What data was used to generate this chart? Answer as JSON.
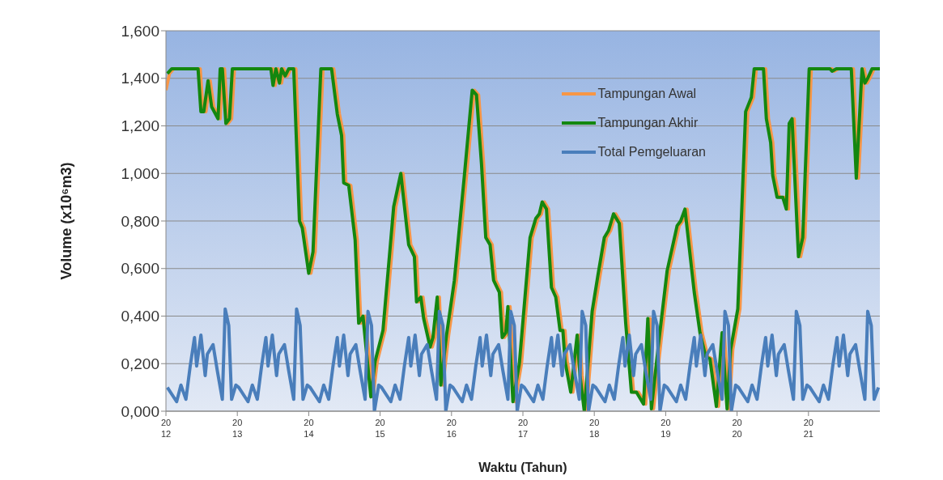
{
  "chart_data": {
    "type": "line",
    "xlabel": "Waktu (Tahun)",
    "ylabel": "Volume (x10⁶m3)",
    "xlim": [
      2012,
      2022
    ],
    "xticks": [
      2012,
      2013,
      2014,
      2015,
      2016,
      2017,
      2018,
      2019,
      2020,
      2021
    ],
    "ylim": [
      0,
      1.6
    ],
    "yticks": [
      {
        "value": 0,
        "label": "0,000"
      },
      {
        "value": 0.2,
        "label": "0,200"
      },
      {
        "value": 0.4,
        "label": "0,400"
      },
      {
        "value": 0.6,
        "label": "0,600"
      },
      {
        "value": 0.8,
        "label": "0,800"
      },
      {
        "value": 1.0,
        "label": "1,000"
      },
      {
        "value": 1.2,
        "label": "1,200"
      },
      {
        "value": 1.4,
        "label": "1,400"
      },
      {
        "value": 1.6,
        "label": "1,600"
      }
    ],
    "grid": "y",
    "legend": "top right",
    "series": [
      {
        "name": "Tampungan Awal",
        "color": "#f79646",
        "x": [
          2012.0,
          2012.05,
          2012.11,
          2012.48,
          2012.52,
          2012.56,
          2012.62,
          2012.67,
          2012.76,
          2012.79,
          2012.82,
          2012.87,
          2012.92,
          2012.96,
          2013.5,
          2013.53,
          2013.57,
          2013.62,
          2013.65,
          2013.7,
          2013.75,
          2013.82,
          2013.9,
          2013.94,
          2014.03,
          2014.09,
          2014.2,
          2014.35,
          2014.43,
          2014.49,
          2014.52,
          2014.59,
          2014.68,
          2014.73,
          2014.79,
          2014.9,
          2014.96,
          2015.07,
          2015.22,
          2015.32,
          2015.43,
          2015.51,
          2015.54,
          2015.6,
          2015.64,
          2015.73,
          2015.77,
          2015.83,
          2015.88,
          2015.96,
          2016.07,
          2016.21,
          2016.32,
          2016.38,
          2016.45,
          2016.51,
          2016.57,
          2016.62,
          2016.7,
          2016.74,
          2016.79,
          2016.82,
          2016.89,
          2016.98,
          2017.13,
          2017.21,
          2017.26,
          2017.3,
          2017.36,
          2017.43,
          2017.49,
          2017.55,
          2017.59,
          2017.62,
          2017.7,
          2017.79,
          2017.83,
          2017.89,
          2018.0,
          2018.08,
          2018.17,
          2018.23,
          2018.3,
          2018.38,
          2018.47,
          2018.55,
          2018.62,
          2018.72,
          2018.78,
          2018.83,
          2018.94,
          2019.05,
          2019.19,
          2019.24,
          2019.3,
          2019.43,
          2019.51,
          2019.59,
          2019.65,
          2019.74,
          2019.82,
          2019.89,
          2019.94,
          2020.04,
          2020.15,
          2020.23,
          2020.27,
          2020.4,
          2020.44,
          2020.5,
          2020.53,
          2020.59,
          2020.67,
          2020.72,
          2020.76,
          2020.8,
          2020.89,
          2020.95,
          2021.04,
          2021.33,
          2021.36,
          2021.42,
          2021.63,
          2021.7,
          2021.78,
          2021.82,
          2021.86,
          2021.92
        ],
        "values": [
          1.35,
          1.42,
          1.44,
          1.44,
          1.26,
          1.26,
          1.39,
          1.28,
          1.23,
          1.44,
          1.44,
          1.21,
          1.23,
          1.44,
          1.44,
          1.37,
          1.44,
          1.38,
          1.44,
          1.41,
          1.44,
          1.44,
          0.8,
          0.77,
          0.58,
          0.67,
          1.44,
          1.44,
          1.25,
          1.16,
          0.96,
          0.95,
          0.72,
          0.37,
          0.4,
          0.06,
          0.21,
          0.34,
          0.86,
          1.0,
          0.7,
          0.65,
          0.46,
          0.48,
          0.39,
          0.27,
          0.31,
          0.48,
          0.11,
          0.32,
          0.55,
          0.99,
          1.35,
          1.33,
          1.04,
          0.73,
          0.7,
          0.55,
          0.5,
          0.31,
          0.33,
          0.44,
          0.04,
          0.2,
          0.73,
          0.81,
          0.83,
          0.88,
          0.85,
          0.52,
          0.48,
          0.34,
          0.34,
          0.21,
          0.08,
          0.32,
          0.15,
          0.0,
          0.42,
          0.57,
          0.73,
          0.76,
          0.83,
          0.79,
          0.37,
          0.08,
          0.08,
          0.03,
          0.39,
          0.01,
          0.31,
          0.59,
          0.78,
          0.8,
          0.85,
          0.5,
          0.33,
          0.23,
          0.22,
          0.02,
          0.33,
          0.01,
          0.26,
          0.43,
          1.26,
          1.32,
          1.44,
          1.44,
          1.23,
          1.13,
          0.99,
          0.9,
          0.9,
          0.85,
          1.21,
          1.23,
          0.65,
          0.73,
          1.44,
          1.44,
          1.43,
          1.44,
          1.44,
          0.98,
          1.44,
          1.38,
          1.4,
          1.44
        ]
      },
      {
        "name": "Tampungan Akhir",
        "color": "#14870f",
        "x": [
          2012.02,
          2012.08,
          2012.45,
          2012.49,
          2012.53,
          2012.59,
          2012.64,
          2012.73,
          2012.76,
          2012.79,
          2012.84,
          2012.89,
          2012.93,
          2013.47,
          2013.5,
          2013.54,
          2013.59,
          2013.62,
          2013.67,
          2013.72,
          2013.79,
          2013.87,
          2013.91,
          2014.0,
          2014.06,
          2014.17,
          2014.32,
          2014.4,
          2014.46,
          2014.49,
          2014.56,
          2014.65,
          2014.7,
          2014.76,
          2014.87,
          2014.93,
          2015.04,
          2015.19,
          2015.29,
          2015.4,
          2015.48,
          2015.51,
          2015.57,
          2015.61,
          2015.7,
          2015.74,
          2015.8,
          2015.85,
          2015.93,
          2016.04,
          2016.18,
          2016.29,
          2016.35,
          2016.42,
          2016.48,
          2016.54,
          2016.59,
          2016.67,
          2016.71,
          2016.76,
          2016.79,
          2016.86,
          2016.95,
          2017.1,
          2017.18,
          2017.23,
          2017.27,
          2017.33,
          2017.4,
          2017.46,
          2017.52,
          2017.56,
          2017.59,
          2017.67,
          2017.76,
          2017.8,
          2017.86,
          2017.97,
          2018.05,
          2018.14,
          2018.2,
          2018.27,
          2018.35,
          2018.44,
          2018.52,
          2018.59,
          2018.69,
          2018.75,
          2018.8,
          2018.91,
          2019.02,
          2019.16,
          2019.21,
          2019.27,
          2019.4,
          2019.48,
          2019.56,
          2019.62,
          2019.71,
          2019.79,
          2019.86,
          2019.91,
          2020.01,
          2020.12,
          2020.2,
          2020.24,
          2020.37,
          2020.41,
          2020.47,
          2020.5,
          2020.56,
          2020.64,
          2020.69,
          2020.73,
          2020.77,
          2020.86,
          2020.92,
          2021.01,
          2021.3,
          2021.33,
          2021.39,
          2021.6,
          2021.67,
          2021.75,
          2021.79,
          2021.83,
          2021.89,
          2022.0
        ],
        "values": [
          1.42,
          1.44,
          1.44,
          1.26,
          1.26,
          1.39,
          1.28,
          1.23,
          1.44,
          1.44,
          1.21,
          1.23,
          1.44,
          1.44,
          1.37,
          1.44,
          1.38,
          1.44,
          1.41,
          1.44,
          1.44,
          0.8,
          0.77,
          0.58,
          0.67,
          1.44,
          1.44,
          1.25,
          1.16,
          0.96,
          0.95,
          0.72,
          0.37,
          0.4,
          0.06,
          0.21,
          0.34,
          0.86,
          1.0,
          0.7,
          0.65,
          0.46,
          0.48,
          0.39,
          0.27,
          0.31,
          0.48,
          0.11,
          0.32,
          0.55,
          0.99,
          1.35,
          1.33,
          1.04,
          0.73,
          0.7,
          0.55,
          0.5,
          0.31,
          0.33,
          0.44,
          0.04,
          0.2,
          0.73,
          0.81,
          0.83,
          0.88,
          0.85,
          0.52,
          0.48,
          0.34,
          0.34,
          0.21,
          0.08,
          0.32,
          0.15,
          0.0,
          0.42,
          0.57,
          0.73,
          0.76,
          0.83,
          0.79,
          0.37,
          0.08,
          0.08,
          0.03,
          0.39,
          0.01,
          0.31,
          0.59,
          0.78,
          0.8,
          0.85,
          0.5,
          0.33,
          0.23,
          0.22,
          0.02,
          0.33,
          0.01,
          0.26,
          0.43,
          1.26,
          1.32,
          1.44,
          1.44,
          1.23,
          1.13,
          0.99,
          0.9,
          0.9,
          0.85,
          1.21,
          1.23,
          0.65,
          0.73,
          1.44,
          1.44,
          1.43,
          1.44,
          1.44,
          0.98,
          1.44,
          1.38,
          1.4,
          1.44,
          1.44
        ]
      },
      {
        "name": "Total Pemgeluaran",
        "color": "#4a7ebb",
        "x": [
          2012.02,
          2012.15,
          2012.21,
          2012.28,
          2012.34,
          2012.4,
          2012.43,
          2012.49,
          2012.55,
          2012.58,
          2012.66,
          2012.72,
          2012.79,
          2012.83,
          2012.88,
          2012.92,
          2012.98,
          2013.02,
          2013.15,
          2013.21,
          2013.28,
          2013.34,
          2013.4,
          2013.43,
          2013.49,
          2013.55,
          2013.58,
          2013.66,
          2013.72,
          2013.79,
          2013.83,
          2013.88,
          2013.92,
          2013.98,
          2014.02,
          2014.15,
          2014.21,
          2014.28,
          2014.34,
          2014.4,
          2014.43,
          2014.49,
          2014.55,
          2014.58,
          2014.66,
          2014.72,
          2014.79,
          2014.83,
          2014.88,
          2014.92,
          2014.98,
          2015.02,
          2015.15,
          2015.21,
          2015.28,
          2015.34,
          2015.4,
          2015.43,
          2015.49,
          2015.55,
          2015.58,
          2015.66,
          2015.72,
          2015.79,
          2015.83,
          2015.88,
          2015.92,
          2015.98,
          2016.02,
          2016.15,
          2016.21,
          2016.28,
          2016.34,
          2016.4,
          2016.43,
          2016.49,
          2016.55,
          2016.58,
          2016.66,
          2016.72,
          2016.79,
          2016.83,
          2016.88,
          2016.92,
          2016.98,
          2017.02,
          2017.15,
          2017.21,
          2017.28,
          2017.34,
          2017.4,
          2017.43,
          2017.49,
          2017.55,
          2017.58,
          2017.66,
          2017.72,
          2017.79,
          2017.83,
          2017.88,
          2017.92,
          2017.98,
          2018.02,
          2018.15,
          2018.21,
          2018.28,
          2018.34,
          2018.4,
          2018.43,
          2018.49,
          2018.55,
          2018.58,
          2018.66,
          2018.72,
          2018.79,
          2018.83,
          2018.88,
          2018.92,
          2018.98,
          2019.02,
          2019.15,
          2019.21,
          2019.28,
          2019.34,
          2019.4,
          2019.43,
          2019.49,
          2019.55,
          2019.58,
          2019.66,
          2019.72,
          2019.79,
          2019.83,
          2019.88,
          2019.92,
          2019.98,
          2020.02,
          2020.15,
          2020.21,
          2020.28,
          2020.34,
          2020.4,
          2020.43,
          2020.49,
          2020.55,
          2020.58,
          2020.66,
          2020.72,
          2020.79,
          2020.83,
          2020.88,
          2020.92,
          2020.98,
          2021.02,
          2021.15,
          2021.21,
          2021.28,
          2021.34,
          2021.4,
          2021.43,
          2021.49,
          2021.55,
          2021.58,
          2021.66,
          2021.72,
          2021.79,
          2021.83,
          2021.88,
          2021.92,
          2021.98
        ],
        "values": [
          0.1,
          0.04,
          0.11,
          0.05,
          0.19,
          0.31,
          0.19,
          0.32,
          0.15,
          0.24,
          0.28,
          0.17,
          0.05,
          0.43,
          0.36,
          0.05,
          0.11,
          0.1,
          0.04,
          0.11,
          0.05,
          0.19,
          0.31,
          0.19,
          0.32,
          0.15,
          0.24,
          0.28,
          0.17,
          0.05,
          0.43,
          0.36,
          0.05,
          0.11,
          0.1,
          0.04,
          0.11,
          0.05,
          0.19,
          0.31,
          0.19,
          0.32,
          0.15,
          0.24,
          0.28,
          0.17,
          0.05,
          0.42,
          0.36,
          0.0,
          0.11,
          0.1,
          0.04,
          0.11,
          0.05,
          0.19,
          0.31,
          0.19,
          0.32,
          0.15,
          0.24,
          0.28,
          0.17,
          0.05,
          0.42,
          0.36,
          0.0,
          0.11,
          0.1,
          0.04,
          0.11,
          0.05,
          0.19,
          0.31,
          0.19,
          0.32,
          0.15,
          0.24,
          0.28,
          0.17,
          0.05,
          0.42,
          0.36,
          0.0,
          0.11,
          0.1,
          0.04,
          0.11,
          0.05,
          0.19,
          0.31,
          0.19,
          0.32,
          0.15,
          0.24,
          0.28,
          0.17,
          0.05,
          0.42,
          0.36,
          0.0,
          0.11,
          0.1,
          0.04,
          0.11,
          0.05,
          0.19,
          0.31,
          0.19,
          0.32,
          0.15,
          0.24,
          0.28,
          0.17,
          0.05,
          0.42,
          0.36,
          0.0,
          0.11,
          0.1,
          0.04,
          0.11,
          0.05,
          0.19,
          0.31,
          0.19,
          0.32,
          0.15,
          0.24,
          0.28,
          0.17,
          0.05,
          0.42,
          0.36,
          0.0,
          0.11,
          0.1,
          0.04,
          0.11,
          0.05,
          0.19,
          0.31,
          0.19,
          0.32,
          0.15,
          0.24,
          0.28,
          0.17,
          0.05,
          0.42,
          0.36,
          0.05,
          0.11,
          0.1,
          0.04,
          0.11,
          0.05,
          0.19,
          0.31,
          0.19,
          0.32,
          0.15,
          0.24,
          0.28,
          0.17,
          0.05,
          0.42,
          0.36,
          0.05,
          0.1
        ]
      }
    ]
  }
}
